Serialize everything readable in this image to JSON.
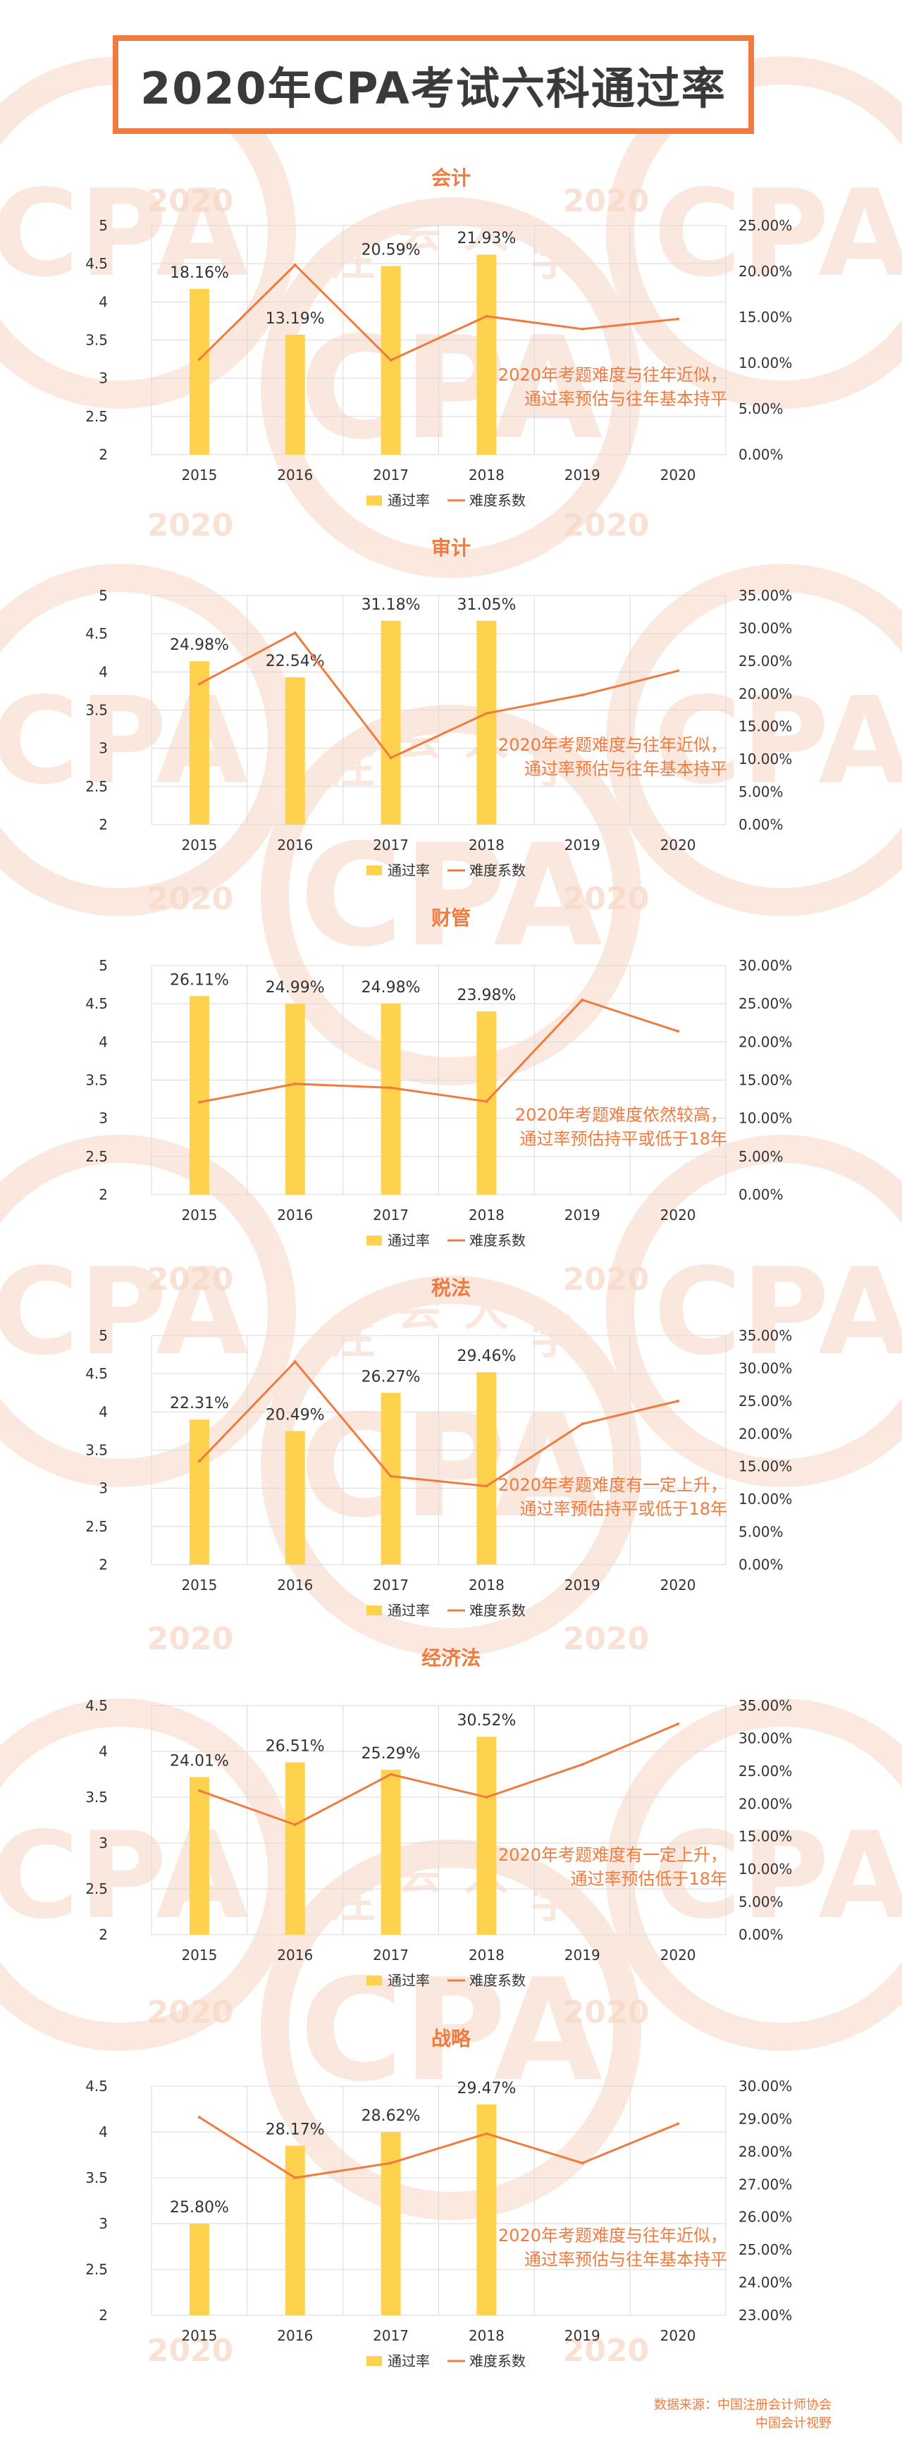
{
  "page_title": "2020年CPA考试六科通过率",
  "source": {
    "line1": "数据来源：中国注册会计师协会",
    "line2": "中国会计视野"
  },
  "watermark": {
    "year": "2020",
    "letters": "CPA",
    "seal_chars": [
      "注",
      "会",
      "大",
      "学"
    ]
  },
  "colors": {
    "bar": "#ffd24d",
    "line": "#f07b3f",
    "axis_text": "#333333",
    "grid": "#d9d9d9",
    "note": "#f07b3f",
    "watermark": "#f7d7c4"
  },
  "chart_data": [
    {
      "type": "bar",
      "title": "会计",
      "categories": [
        "2015",
        "2016",
        "2017",
        "2018",
        "2019",
        "2020"
      ],
      "series": [
        {
          "name": "通过率",
          "kind": "bar",
          "axis": "left",
          "values": [
            4.17,
            3.57,
            4.47,
            4.62,
            null,
            null
          ],
          "data_labels": [
            "18.16%",
            "13.19%",
            "20.59%",
            "21.93%",
            null,
            null
          ]
        },
        {
          "name": "难度系数",
          "kind": "line",
          "axis": "right",
          "values": [
            0.104,
            0.207,
            0.103,
            0.151,
            0.137,
            0.148
          ]
        }
      ],
      "left_axis": {
        "ticks": [
          "5",
          "4.5",
          "4",
          "3.5",
          "3",
          "2.5",
          "2"
        ],
        "min": 2,
        "max": 5
      },
      "right_axis": {
        "ticks": [
          "25.00%",
          "20.00%",
          "15.00%",
          "10.00%",
          "5.00%",
          "0.00%"
        ],
        "min": 0,
        "max": 0.25
      },
      "note": [
        "2020年考题难度与往年近似，",
        "通过率预估与往年基本持平"
      ],
      "legend": [
        "通过率",
        "难度系数"
      ]
    },
    {
      "type": "bar",
      "title": "审计",
      "categories": [
        "2015",
        "2016",
        "2017",
        "2018",
        "2019",
        "2020"
      ],
      "series": [
        {
          "name": "通过率",
          "kind": "bar",
          "axis": "left",
          "values": [
            4.14,
            3.93,
            4.67,
            4.67,
            null,
            null
          ],
          "data_labels": [
            "24.98%",
            "22.54%",
            "31.18%",
            "31.05%",
            null,
            null
          ]
        },
        {
          "name": "难度系数",
          "kind": "line",
          "axis": "right",
          "values": [
            0.215,
            0.293,
            0.102,
            0.17,
            0.198,
            0.235
          ]
        }
      ],
      "left_axis": {
        "ticks": [
          "5",
          "4.5",
          "4",
          "3.5",
          "3",
          "2.5",
          "2"
        ],
        "min": 2,
        "max": 5
      },
      "right_axis": {
        "ticks": [
          "35.00%",
          "30.00%",
          "25.00%",
          "20.00%",
          "15.00%",
          "10.00%",
          "5.00%",
          "0.00%"
        ],
        "min": 0,
        "max": 0.35
      },
      "note": [
        "2020年考题难度与往年近似，",
        "通过率预估与往年基本持平"
      ],
      "legend": [
        "通过率",
        "难度系数"
      ]
    },
    {
      "type": "bar",
      "title": "财管",
      "categories": [
        "2015",
        "2016",
        "2017",
        "2018",
        "2019",
        "2020"
      ],
      "series": [
        {
          "name": "通过率",
          "kind": "bar",
          "axis": "left",
          "values": [
            4.6,
            4.5,
            4.5,
            4.4,
            null,
            null
          ],
          "data_labels": [
            "26.11%",
            "24.99%",
            "24.98%",
            "23.98%",
            null,
            null
          ]
        },
        {
          "name": "难度系数",
          "kind": "line",
          "axis": "right",
          "values": [
            0.121,
            0.145,
            0.14,
            0.122,
            0.255,
            0.214
          ]
        }
      ],
      "left_axis": {
        "ticks": [
          "5",
          "4.5",
          "4",
          "3.5",
          "3",
          "2.5",
          "2"
        ],
        "min": 2,
        "max": 5
      },
      "right_axis": {
        "ticks": [
          "30.00%",
          "25.00%",
          "20.00%",
          "15.00%",
          "10.00%",
          "5.00%",
          "0.00%"
        ],
        "min": 0,
        "max": 0.3
      },
      "note": [
        "2020年考题难度依然较高，",
        "通过率预估持平或低于18年"
      ],
      "legend": [
        "通过率",
        "难度系数"
      ]
    },
    {
      "type": "bar",
      "title": "税法",
      "categories": [
        "2015",
        "2016",
        "2017",
        "2018",
        "2019",
        "2020"
      ],
      "series": [
        {
          "name": "通过率",
          "kind": "bar",
          "axis": "left",
          "values": [
            3.9,
            3.75,
            4.25,
            4.52,
            null,
            null
          ],
          "data_labels": [
            "22.31%",
            "20.49%",
            "26.27%",
            "29.46%",
            null,
            null
          ]
        },
        {
          "name": "难度系数",
          "kind": "line",
          "axis": "right",
          "values": [
            0.158,
            0.31,
            0.135,
            0.12,
            0.215,
            0.25
          ]
        }
      ],
      "left_axis": {
        "ticks": [
          "5",
          "4.5",
          "4",
          "3.5",
          "3",
          "2.5",
          "2"
        ],
        "min": 2,
        "max": 5
      },
      "right_axis": {
        "ticks": [
          "35.00%",
          "30.00%",
          "25.00%",
          "20.00%",
          "15.00%",
          "10.00%",
          "5.00%",
          "0.00%"
        ],
        "min": 0,
        "max": 0.35
      },
      "note": [
        "2020年考题难度有一定上升，",
        "通过率预估持平或低于18年"
      ],
      "legend": [
        "通过率",
        "难度系数"
      ]
    },
    {
      "type": "bar",
      "title": "经济法",
      "categories": [
        "2015",
        "2016",
        "2017",
        "2018",
        "2019",
        "2020"
      ],
      "series": [
        {
          "name": "通过率",
          "kind": "bar",
          "axis": "left",
          "values": [
            3.72,
            3.88,
            3.8,
            4.16,
            null,
            null
          ],
          "data_labels": [
            "24.01%",
            "26.51%",
            "25.29%",
            "30.52%",
            null,
            null
          ]
        },
        {
          "name": "难度系数",
          "kind": "line",
          "axis": "right",
          "values": [
            0.22,
            0.168,
            0.245,
            0.21,
            0.26,
            0.322
          ]
        }
      ],
      "left_axis": {
        "ticks": [
          "4.5",
          "4",
          "3.5",
          "3",
          "2.5",
          "2"
        ],
        "min": 2,
        "max": 4.5
      },
      "right_axis": {
        "ticks": [
          "35.00%",
          "30.00%",
          "25.00%",
          "20.00%",
          "15.00%",
          "10.00%",
          "5.00%",
          "0.00%"
        ],
        "min": 0,
        "max": 0.35
      },
      "note": [
        "2020年考题难度有一定上升，",
        "通过率预估低于18年"
      ],
      "legend": [
        "通过率",
        "难度系数"
      ]
    },
    {
      "type": "bar",
      "title": "战略",
      "categories": [
        "2015",
        "2016",
        "2017",
        "2018",
        "2019",
        "2020"
      ],
      "series": [
        {
          "name": "通过率",
          "kind": "bar",
          "axis": "left",
          "values": [
            3.0,
            3.85,
            4.0,
            4.3,
            null,
            null
          ],
          "data_labels": [
            "25.80%",
            "28.17%",
            "28.62%",
            "29.47%",
            null,
            null
          ]
        },
        {
          "name": "难度系数",
          "kind": "line",
          "axis": "right",
          "values": [
            0.2905,
            0.272,
            0.2765,
            0.2855,
            0.2765,
            0.2885
          ]
        }
      ],
      "left_axis": {
        "ticks": [
          "4.5",
          "4",
          "3.5",
          "3",
          "2.5",
          "2"
        ],
        "min": 2,
        "max": 4.5
      },
      "right_axis": {
        "ticks": [
          "30.00%",
          "29.00%",
          "28.00%",
          "27.00%",
          "26.00%",
          "25.00%",
          "24.00%",
          "23.00%"
        ],
        "min": 0.23,
        "max": 0.3
      },
      "note": [
        "2020年考题难度与往年近似，",
        "通过率预估与往年基本持平"
      ],
      "legend": [
        "通过率",
        "难度系数"
      ]
    }
  ]
}
